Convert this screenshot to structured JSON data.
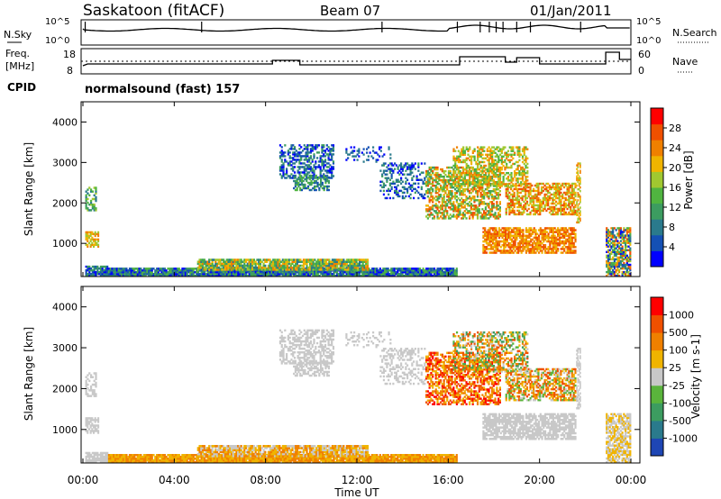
{
  "header": {
    "station": "Saskatoon (fitACF)",
    "beam": "Beam 07",
    "date": "01/Jan/2011"
  },
  "top_panels": {
    "left_labels": {
      "nsky": "N.Sky",
      "freq": "Freq.",
      "mhz": "[MHz]",
      "cpid": "CPID"
    },
    "right_labels": {
      "nsearch": "N.Search",
      "nave": "Nave"
    },
    "noise_ticks_left": [
      "10^5",
      "10^0"
    ],
    "noise_ticks_right": [
      "10^5",
      "10^0"
    ],
    "freq_ticks": [
      "18",
      "8"
    ],
    "nave_ticks": [
      "60",
      "0"
    ],
    "cpid_text": "normalsound (fast) 157"
  },
  "chart_data": [
    {
      "type": "heatmap",
      "name": "power",
      "ylabel": "Slant Range [km]",
      "ylim": [
        180,
        4500
      ],
      "yticks": [
        "1000",
        "2000",
        "3000",
        "4000"
      ],
      "colorbar": {
        "label": "Power [dB]",
        "ticks": [
          "28",
          "24",
          "20",
          "16",
          "12",
          "8",
          "4"
        ],
        "colors": [
          "#0000ff",
          "#1450b4",
          "#2a7a8c",
          "#3c9c60",
          "#50b440",
          "#a0c830",
          "#f0b400",
          "#f08000",
          "#f05000",
          "#ff0000"
        ]
      }
    },
    {
      "type": "heatmap",
      "name": "velocity",
      "ylabel": "Slant Range [km]",
      "ylim": [
        180,
        4500
      ],
      "yticks": [
        "1000",
        "2000",
        "3000",
        "4000"
      ],
      "colorbar": {
        "label": "Velocity [m s-1]",
        "ticks": [
          "1000",
          "500",
          "100",
          "25",
          "-25",
          "-100",
          "-500",
          "-1000"
        ],
        "colors": [
          "#1e46b4",
          "#2a7a8c",
          "#3c9c60",
          "#5ab43c",
          "#c8c8c8",
          "#f0b400",
          "#f08000",
          "#f05000",
          "#ff0000"
        ]
      }
    }
  ],
  "time_axis": {
    "label": "Time UT",
    "ticks": [
      "00:00",
      "04:00",
      "08:00",
      "12:00",
      "16:00",
      "20:00",
      "00:00"
    ],
    "xlim_hours": [
      0,
      24
    ]
  }
}
